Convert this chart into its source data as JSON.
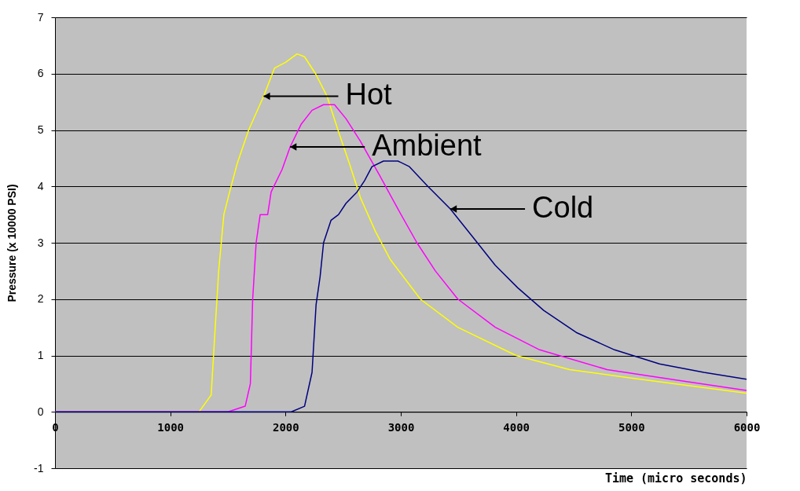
{
  "chart_data": {
    "type": "line",
    "xlabel": "Time (micro seconds)",
    "ylabel": "Pressure (x 10000 PSI)",
    "xlim": [
      0,
      6000
    ],
    "xticks": [
      0,
      1000,
      2000,
      3000,
      4000,
      5000,
      6000
    ],
    "ylim": [
      -1,
      7
    ],
    "yticks": [
      -1,
      0,
      1,
      2,
      3,
      4,
      5,
      6,
      7
    ],
    "grid": "y",
    "marker": "none",
    "line_style": "solid",
    "series": [
      {
        "color": "#ffff00",
        "x": [
          0,
          1250,
          1355,
          1390,
          1420,
          1465,
          1515,
          1580,
          1680,
          1810,
          1905,
          2000,
          2100,
          2165,
          2260,
          2360,
          2455,
          2555,
          2650,
          2780,
          2910,
          3170,
          3495,
          4000,
          4465,
          5000,
          6000
        ],
        "values": [
          0,
          0,
          0.3,
          1.5,
          2.5,
          3.5,
          3.9,
          4.4,
          5.0,
          5.6,
          6.1,
          6.2,
          6.35,
          6.3,
          6.0,
          5.6,
          5.0,
          4.4,
          3.8,
          3.2,
          2.7,
          2.0,
          1.5,
          1.0,
          0.75,
          0.6,
          0.33
        ]
      },
      {
        "color": "#ff00ff",
        "x": [
          0,
          1500,
          1650,
          1695,
          1715,
          1745,
          1780,
          1845,
          1875,
          1970,
          2040,
          2135,
          2230,
          2330,
          2425,
          2525,
          2650,
          2815,
          2975,
          3140,
          3300,
          3495,
          3820,
          4205,
          4790,
          5435,
          6000
        ],
        "values": [
          0,
          0,
          0.1,
          0.5,
          2.0,
          3.0,
          3.5,
          3.5,
          3.9,
          4.3,
          4.7,
          5.1,
          5.35,
          5.45,
          5.45,
          5.2,
          4.8,
          4.2,
          3.6,
          3.0,
          2.5,
          2.0,
          1.5,
          1.1,
          0.75,
          0.55,
          0.38
        ]
      },
      {
        "color": "#000080",
        "x": [
          0,
          2050,
          2165,
          2230,
          2265,
          2300,
          2330,
          2395,
          2460,
          2525,
          2620,
          2685,
          2750,
          2850,
          2975,
          3075,
          3235,
          3430,
          3625,
          3820,
          4015,
          4240,
          4530,
          4855,
          5245,
          5630,
          6000
        ],
        "values": [
          0,
          0,
          0.1,
          0.7,
          1.9,
          2.4,
          3.0,
          3.4,
          3.5,
          3.7,
          3.9,
          4.1,
          4.35,
          4.45,
          4.45,
          4.35,
          4.0,
          3.6,
          3.1,
          2.6,
          2.2,
          1.8,
          1.4,
          1.1,
          0.85,
          0.7,
          0.58
        ]
      }
    ],
    "annotations": [
      {
        "text": "Hot",
        "x": 1810,
        "y": 5.6
      },
      {
        "text": "Ambient",
        "x": 2040,
        "y": 4.7
      },
      {
        "text": "Cold",
        "x": 3430,
        "y": 3.6
      }
    ]
  }
}
